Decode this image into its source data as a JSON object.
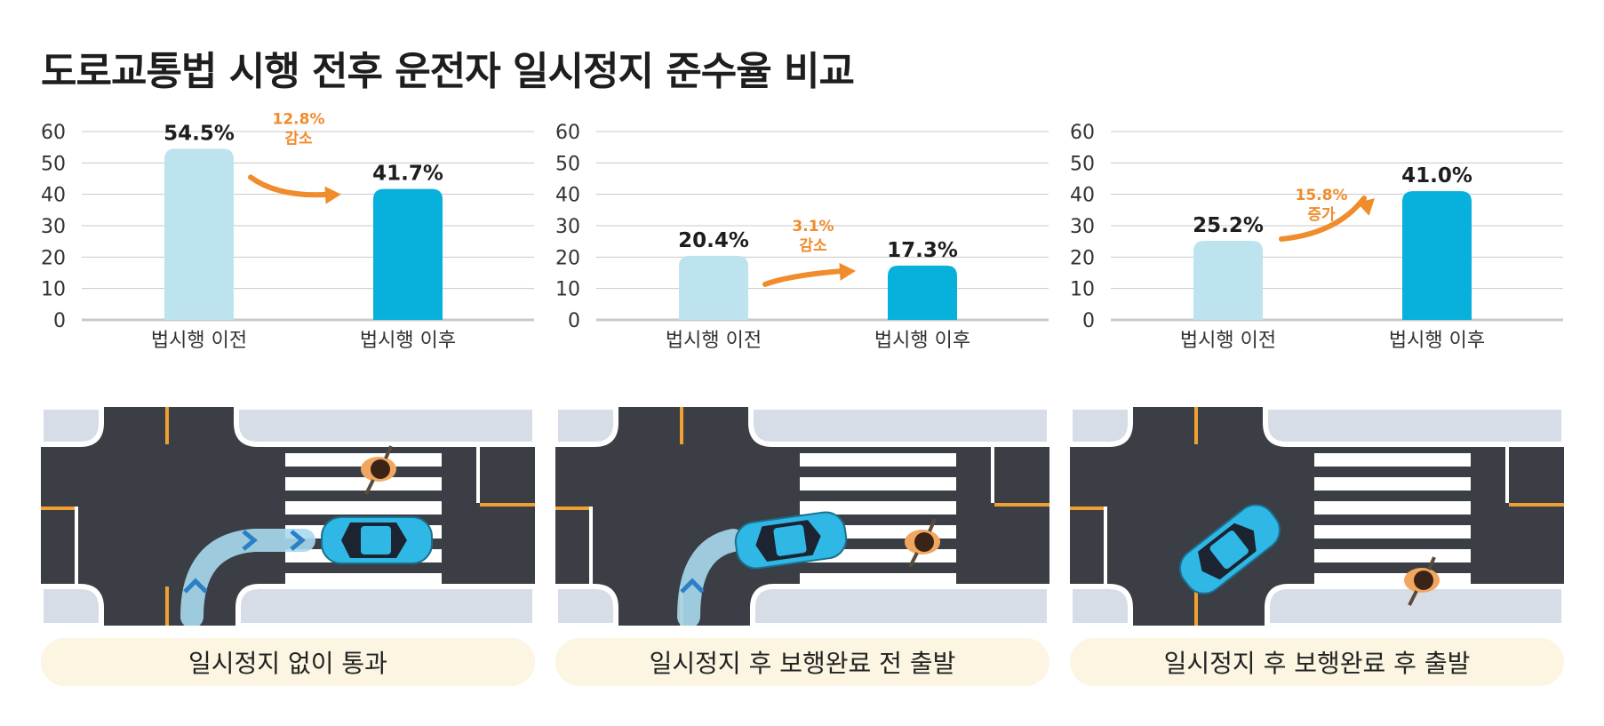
{
  "title": "도로교통법 시행 전후 운전자 일시정지 준수율 비교",
  "colors": {
    "before_bar": "#bde3ee",
    "after_bar": "#08b0dc",
    "arrow": "#f08c2c",
    "grid": "#c9c9c9",
    "road": "#3b3e44",
    "sidewalk": "#d7dde6",
    "caption_bg": "#fbf5e1"
  },
  "chart_data": [
    {
      "type": "bar",
      "categories": [
        "법시행 이전",
        "법시행 이후"
      ],
      "values": [
        54.5,
        41.7
      ],
      "value_labels": [
        "54.5%",
        "41.7%"
      ],
      "yticks": [
        "60",
        "50",
        "40",
        "30",
        "20",
        "10",
        "0"
      ],
      "ylim": [
        0,
        60
      ],
      "change": {
        "value": "12.8%",
        "label": "감소",
        "direction": "down"
      },
      "caption": "일시정지 없이 통과",
      "scene": "car-passes-without-stopping"
    },
    {
      "type": "bar",
      "categories": [
        "법시행 이전",
        "법시행 이후"
      ],
      "values": [
        20.4,
        17.3
      ],
      "value_labels": [
        "20.4%",
        "17.3%"
      ],
      "yticks": [
        "60",
        "50",
        "40",
        "30",
        "20",
        "10",
        "0"
      ],
      "ylim": [
        0,
        60
      ],
      "change": {
        "value": "3.1%",
        "label": "감소",
        "direction": "down"
      },
      "caption": "일시정지 후 보행완료 전 출발",
      "scene": "car-departs-before-pedestrian-finishes"
    },
    {
      "type": "bar",
      "categories": [
        "법시행 이전",
        "법시행 이후"
      ],
      "values": [
        25.2,
        41.0
      ],
      "value_labels": [
        "25.2%",
        "41.0%"
      ],
      "yticks": [
        "60",
        "50",
        "40",
        "30",
        "20",
        "10",
        "0"
      ],
      "ylim": [
        0,
        60
      ],
      "change": {
        "value": "15.8%",
        "label": "증가",
        "direction": "up"
      },
      "caption": "일시정지 후 보행완료 후 출발",
      "scene": "car-departs-after-pedestrian-finishes"
    }
  ]
}
